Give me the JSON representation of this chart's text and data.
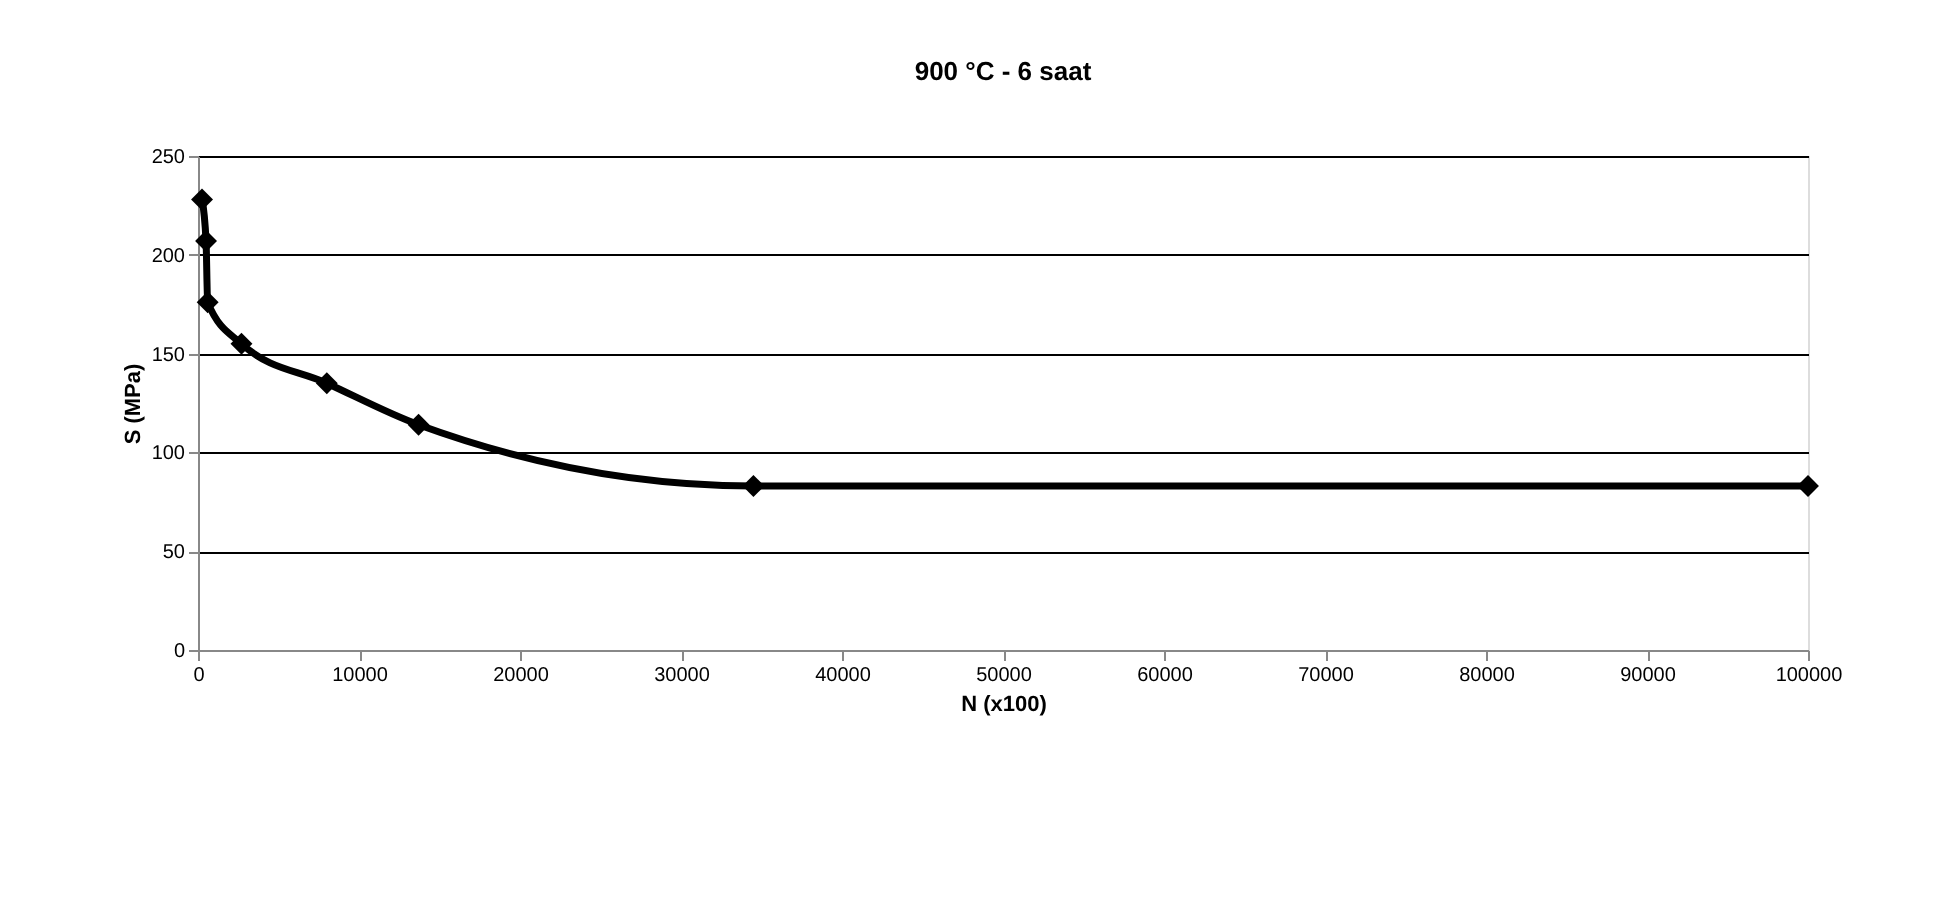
{
  "chart_data": {
    "type": "line",
    "title": "900 °C - 6 saat",
    "xlabel": "N (x100)",
    "ylabel": "S (MPa)",
    "x": [
      250,
      500,
      600,
      2700,
      8000,
      13700,
      34500,
      100000
    ],
    "series": [
      {
        "color": "#000000",
        "values": [
          228,
          207,
          176,
          155,
          135,
          114,
          83,
          83
        ]
      }
    ],
    "xlim": [
      0,
      100000
    ],
    "xticks": [
      0,
      10000,
      20000,
      30000,
      40000,
      50000,
      60000,
      70000,
      80000,
      90000,
      100000
    ],
    "ylim": [
      0,
      250
    ],
    "yticks": [
      0,
      50,
      100,
      150,
      200,
      250
    ],
    "grid": "y",
    "marker": "diamond",
    "line_style": "solid"
  }
}
